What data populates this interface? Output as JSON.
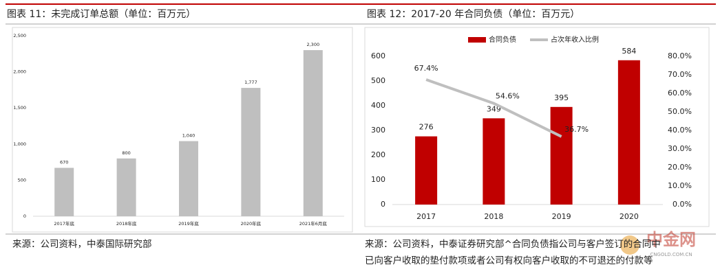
{
  "chart_data": [
    {
      "type": "bar",
      "title": "图表 11：未完成订单总额（单位：百万元）",
      "categories": [
        "2017年底",
        "2018年底",
        "2019年底",
        "2020年底",
        "2021年6月底"
      ],
      "values": [
        670,
        800,
        1040,
        1777,
        2300
      ],
      "value_labels": [
        "670",
        "800",
        "1,040",
        "1,777",
        "2,300"
      ],
      "color": "#bfbfbf",
      "ylim": [
        0,
        2500
      ],
      "yticks": [
        0,
        500,
        {
          "value": 1000,
          "label": "1,000"
        },
        {
          "value": 1500,
          "label": "1,500"
        },
        {
          "value": 2000,
          "label": "2,000"
        },
        {
          "value": 2500,
          "label": "2,500"
        }
      ],
      "source": [
        "来源：公司资料，中泰国际研究部"
      ]
    },
    {
      "type": "bar-line",
      "title": "图表 12：2017-20 年合同负债（单位：百万元）",
      "categories": [
        "2017",
        "2018",
        "2019",
        "2020"
      ],
      "series": [
        {
          "name": "合同负债",
          "type": "bar",
          "color": "#c00000",
          "values": [
            276,
            349,
            395,
            584
          ]
        },
        {
          "name": "占次年收入比例",
          "type": "line",
          "axis": "y2",
          "color": "#bfbfbf",
          "values": [
            67.4,
            54.6,
            36.7,
            null
          ],
          "value_labels": [
            "67.4%",
            "54.6%",
            "36.7%",
            null
          ]
        }
      ],
      "ylim": [
        0,
        600
      ],
      "yticks": [
        0,
        100,
        200,
        300,
        400,
        500,
        600
      ],
      "y2lim": [
        0,
        80
      ],
      "y2ticks": [
        {
          "value": 0,
          "label": "0.0%"
        },
        {
          "value": 10,
          "label": "10.0%"
        },
        {
          "value": 20,
          "label": "20.0%"
        },
        {
          "value": 30,
          "label": "30.0%"
        },
        {
          "value": 40,
          "label": "40.0%"
        },
        {
          "value": 50,
          "label": "50.0%"
        },
        {
          "value": 60,
          "label": "60.0%"
        },
        {
          "value": 70,
          "label": "70.0%"
        },
        {
          "value": 80,
          "label": "80.0%"
        }
      ],
      "legend": "top",
      "source": [
        "来源：公司资料，中泰证券研究部^合同负债指公司与客户签订的合同中",
        "已向客户收取的垫付款项或者公司有权向客户收取的不可退还的付款等"
      ]
    }
  ],
  "watermark": [
    "中金网",
    "CNGOLD.COM.CN"
  ]
}
